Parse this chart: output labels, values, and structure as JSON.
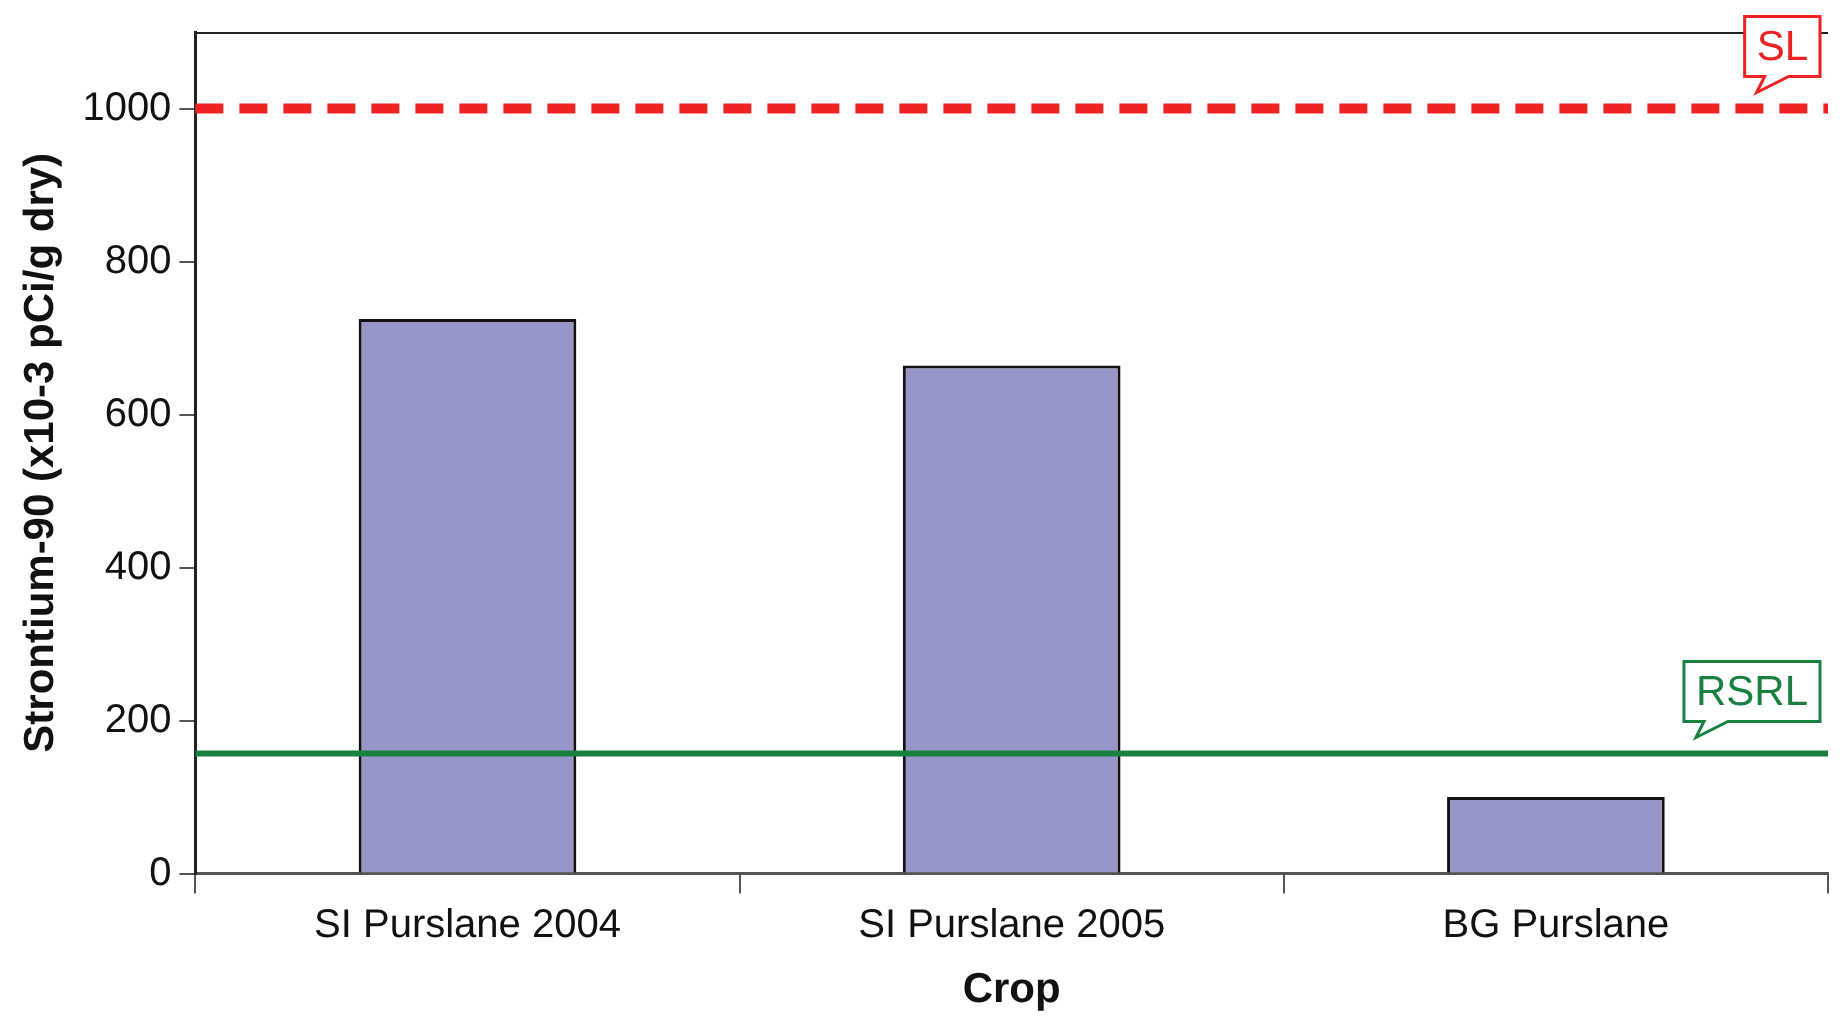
{
  "chart_data": {
    "type": "bar",
    "xlabel": "Crop",
    "ylabel": "Strontium-90 (x10-3 pCi/g dry)",
    "categories": [
      "SI Purslane 2004",
      "SI Purslane 2005",
      "BG Purslane"
    ],
    "values": [
      725,
      664,
      100
    ],
    "color": "#9696c8",
    "ylim": [
      0,
      1100
    ],
    "yticks": [
      0,
      200,
      400,
      600,
      800,
      1000
    ],
    "grid": false,
    "legend": false,
    "ref_lines": [
      {
        "axis": "y",
        "value": 1000,
        "label": "SL",
        "color": "#ee2222",
        "line_style": "dashed"
      },
      {
        "axis": "y",
        "value": 157,
        "label": "RSRL",
        "color": "#1a8040",
        "line_style": "solid"
      }
    ]
  }
}
